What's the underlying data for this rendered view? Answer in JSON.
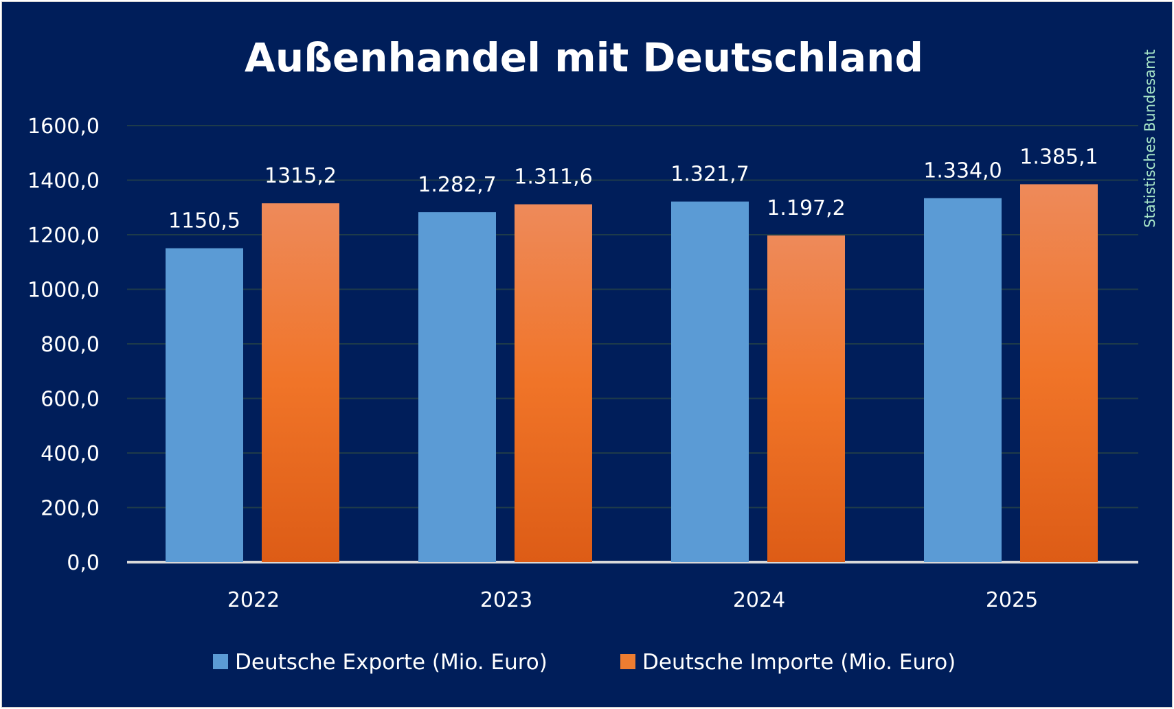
{
  "chart_data": {
    "type": "bar",
    "title": "Außenhandel mit Deutschland",
    "source_note": "Statistisches Bundesamt",
    "categories": [
      "2022",
      "2023",
      "2024",
      "2025"
    ],
    "series": [
      {
        "name": "Deutsche Exporte (Mio. Euro)",
        "values": [
          1150.5,
          1282.7,
          1321.7,
          1334.0
        ],
        "labels": [
          "1150,5",
          "1.282,7",
          "1.321,7",
          "1.334,0"
        ],
        "color": "#5B9BD5"
      },
      {
        "name": "Deutsche Importe (Mio. Euro)",
        "values": [
          1315.2,
          1311.6,
          1197.2,
          1385.1
        ],
        "labels": [
          "1315,2",
          "1.311,6",
          "1.197,2",
          "1.385,1"
        ],
        "color": "#ED7D31"
      }
    ],
    "yticks": [
      "0,0",
      "200,0",
      "400,0",
      "600,0",
      "800,0",
      "1000,0",
      "1200,0",
      "1400,0",
      "1600,0"
    ],
    "ylim": [
      0,
      1600
    ],
    "grid": true,
    "legend": "bottom",
    "colors": {
      "background": "#001E5A",
      "grid": "#1E3B4A",
      "axis": "#D9D9D9",
      "text": "#FFFFFF",
      "source_note": "#A8E6C8"
    }
  }
}
